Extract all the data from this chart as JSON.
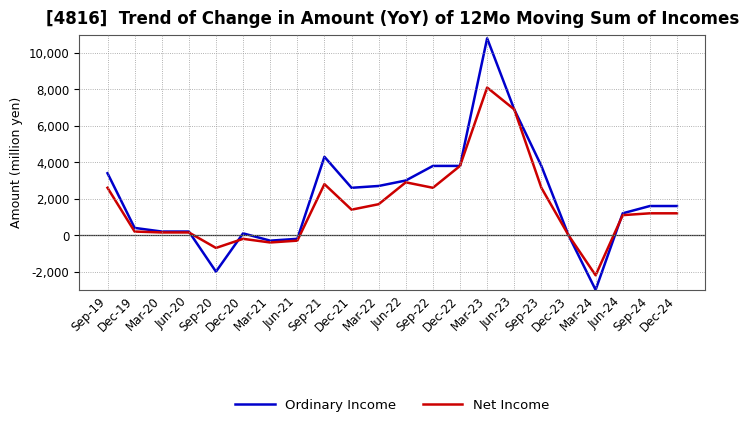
{
  "title": "[4816]  Trend of Change in Amount (YoY) of 12Mo Moving Sum of Incomes",
  "ylabel": "Amount (million yen)",
  "x_labels": [
    "Sep-19",
    "Dec-19",
    "Mar-20",
    "Jun-20",
    "Sep-20",
    "Dec-20",
    "Mar-21",
    "Jun-21",
    "Sep-21",
    "Dec-21",
    "Mar-22",
    "Jun-22",
    "Sep-22",
    "Dec-22",
    "Mar-23",
    "Jun-23",
    "Sep-23",
    "Dec-23",
    "Mar-24",
    "Jun-24",
    "Sep-24",
    "Dec-24"
  ],
  "ordinary_income": [
    3400,
    400,
    200,
    200,
    -2000,
    100,
    -300,
    -200,
    4300,
    2600,
    2700,
    3000,
    3800,
    3800,
    10800,
    6900,
    3800,
    0,
    -3000,
    1200,
    1600,
    1600
  ],
  "net_income": [
    2600,
    200,
    150,
    150,
    -700,
    -200,
    -400,
    -300,
    2800,
    1400,
    1700,
    2900,
    2600,
    3800,
    8100,
    6900,
    2600,
    0,
    -2200,
    1100,
    1200,
    1200
  ],
  "ordinary_color": "#0000cc",
  "net_color": "#cc0000",
  "background_color": "#ffffff",
  "grid_color": "#999999",
  "ylim": [
    -3000,
    11000
  ],
  "yticks": [
    -2000,
    0,
    2000,
    4000,
    6000,
    8000,
    10000
  ],
  "linewidth": 1.8,
  "legend_ordinary": "Ordinary Income",
  "legend_net": "Net Income",
  "title_fontsize": 12,
  "axis_fontsize": 8.5,
  "ylabel_fontsize": 9
}
